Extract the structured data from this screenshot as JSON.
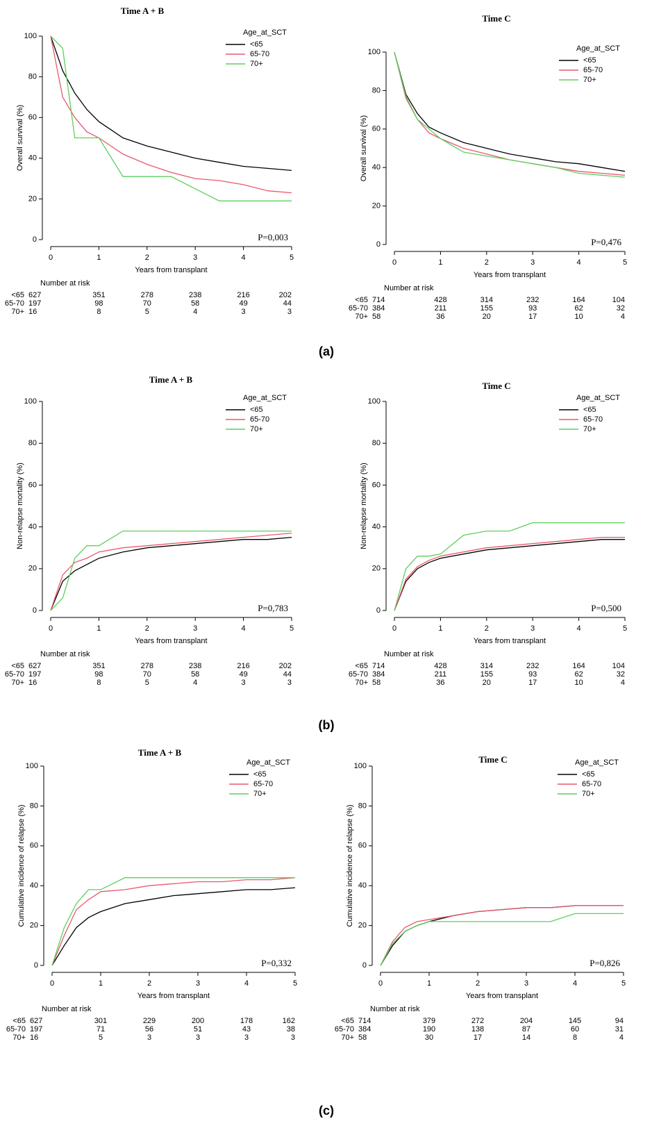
{
  "panel_labels": [
    "(a)",
    "(b)",
    "(c)"
  ],
  "chart_data": [
    {
      "type": "line",
      "title": "Time A + B",
      "ylabel": "Overall survival (%)",
      "xlabel": "Years from transplant",
      "legend_title": "Age_at_SCT",
      "annotation": "P=0,003",
      "xlim": [
        0,
        5
      ],
      "xticks": [
        0,
        1,
        2,
        3,
        4,
        5
      ],
      "ylim": [
        0,
        100
      ],
      "yticks": [
        0,
        20,
        40,
        60,
        80,
        100
      ],
      "x": [
        0,
        0.25,
        0.5,
        0.75,
        1,
        1.5,
        2,
        2.5,
        3,
        3.5,
        4,
        4.5,
        5
      ],
      "series": [
        {
          "name": "<65",
          "color": "#000000",
          "values": [
            100,
            83,
            72,
            64,
            58,
            50,
            46,
            43,
            40,
            38,
            36,
            35,
            34
          ]
        },
        {
          "name": "65-70",
          "color": "#e8586e",
          "values": [
            100,
            70,
            60,
            53,
            50,
            42,
            37,
            33,
            30,
            29,
            27,
            24,
            23
          ]
        },
        {
          "name": "70+",
          "color": "#5ccf5c",
          "values": [
            100,
            94,
            50,
            50,
            50,
            31,
            31,
            31,
            25,
            19,
            19,
            19,
            19
          ]
        }
      ],
      "risk_table": {
        "title": "Number at risk",
        "rows": [
          {
            "name": "<65",
            "values": [
              627,
              351,
              278,
              238,
              216,
              202
            ]
          },
          {
            "name": "65-70",
            "values": [
              197,
              98,
              70,
              58,
              49,
              44
            ]
          },
          {
            "name": "70+",
            "values": [
              16,
              8,
              5,
              4,
              3,
              3
            ]
          }
        ]
      }
    },
    {
      "type": "line",
      "title": "Time C",
      "ylabel": "Overall survival (%)",
      "xlabel": "Years from transplant",
      "legend_title": "Age_at_SCT",
      "annotation": "P=0,476",
      "xlim": [
        0,
        5
      ],
      "xticks": [
        0,
        1,
        2,
        3,
        4,
        5
      ],
      "ylim": [
        0,
        100
      ],
      "yticks": [
        0,
        20,
        40,
        60,
        80,
        100
      ],
      "x": [
        0,
        0.25,
        0.5,
        0.75,
        1,
        1.5,
        2,
        2.5,
        3,
        3.5,
        4,
        4.5,
        5
      ],
      "series": [
        {
          "name": "<65",
          "color": "#000000",
          "values": [
            100,
            78,
            68,
            61,
            58,
            53,
            50,
            47,
            45,
            43,
            42,
            40,
            38
          ]
        },
        {
          "name": "65-70",
          "color": "#e8586e",
          "values": [
            100,
            76,
            65,
            58,
            55,
            50,
            47,
            44,
            42,
            40,
            38,
            37,
            36
          ]
        },
        {
          "name": "70+",
          "color": "#5ccf5c",
          "values": [
            100,
            77,
            65,
            60,
            55,
            48,
            46,
            44,
            42,
            40,
            37,
            36,
            35
          ]
        }
      ],
      "risk_table": {
        "title": "Number at risk",
        "rows": [
          {
            "name": "<65",
            "values": [
              714,
              428,
              314,
              232,
              164,
              104
            ]
          },
          {
            "name": "65-70",
            "values": [
              384,
              211,
              155,
              93,
              62,
              32
            ]
          },
          {
            "name": "70+",
            "values": [
              58,
              36,
              20,
              17,
              10,
              4
            ]
          }
        ]
      }
    },
    {
      "type": "line",
      "title": "Time A + B",
      "ylabel": "Non-relapse mortality (%)",
      "xlabel": "Years from transplant",
      "legend_title": "Age_at_SCT",
      "annotation": "P=0,783",
      "xlim": [
        0,
        5
      ],
      "xticks": [
        0,
        1,
        2,
        3,
        4,
        5
      ],
      "ylim": [
        0,
        100
      ],
      "yticks": [
        0,
        20,
        40,
        60,
        80,
        100
      ],
      "x": [
        0,
        0.25,
        0.5,
        0.75,
        1,
        1.5,
        2,
        2.5,
        3,
        3.5,
        4,
        4.5,
        5
      ],
      "series": [
        {
          "name": "<65",
          "color": "#000000",
          "values": [
            0,
            14,
            19,
            22,
            25,
            28,
            30,
            31,
            32,
            33,
            34,
            34,
            35
          ]
        },
        {
          "name": "65-70",
          "color": "#e8586e",
          "values": [
            0,
            17,
            23,
            25,
            28,
            30,
            31,
            32,
            33,
            34,
            35,
            36,
            37
          ]
        },
        {
          "name": "70+",
          "color": "#5ccf5c",
          "values": [
            0,
            6,
            25,
            31,
            31,
            38,
            38,
            38,
            38,
            38,
            38,
            38,
            38
          ]
        }
      ],
      "risk_table": {
        "title": "Number at risk",
        "rows": [
          {
            "name": "<65",
            "values": [
              627,
              351,
              278,
              238,
              216,
              202
            ]
          },
          {
            "name": "65-70",
            "values": [
              197,
              98,
              70,
              58,
              49,
              44
            ]
          },
          {
            "name": "70+",
            "values": [
              16,
              8,
              5,
              4,
              3,
              3
            ]
          }
        ]
      }
    },
    {
      "type": "line",
      "title": "Time C",
      "ylabel": "Non-relapse mortality (%)",
      "xlabel": "Years from transplant",
      "legend_title": "Age_at_SCT",
      "annotation": "P=0,500",
      "xlim": [
        0,
        5
      ],
      "xticks": [
        0,
        1,
        2,
        3,
        4,
        5
      ],
      "ylim": [
        0,
        100
      ],
      "yticks": [
        0,
        20,
        40,
        60,
        80,
        100
      ],
      "x": [
        0,
        0.25,
        0.5,
        0.75,
        1,
        1.5,
        2,
        2.5,
        3,
        3.5,
        4,
        4.5,
        5
      ],
      "series": [
        {
          "name": "<65",
          "color": "#000000",
          "values": [
            0,
            14,
            20,
            23,
            25,
            27,
            29,
            30,
            31,
            32,
            33,
            34,
            34
          ]
        },
        {
          "name": "65-70",
          "color": "#e8586e",
          "values": [
            0,
            15,
            21,
            24,
            26,
            28,
            30,
            31,
            32,
            33,
            34,
            35,
            35
          ]
        },
        {
          "name": "70+",
          "color": "#5ccf5c",
          "values": [
            0,
            20,
            26,
            26,
            27,
            36,
            38,
            38,
            42,
            42,
            42,
            42,
            42
          ]
        }
      ],
      "risk_table": {
        "title": "Number at risk",
        "rows": [
          {
            "name": "<65",
            "values": [
              714,
              428,
              314,
              232,
              164,
              104
            ]
          },
          {
            "name": "65-70",
            "values": [
              384,
              211,
              155,
              93,
              62,
              32
            ]
          },
          {
            "name": "70+",
            "values": [
              58,
              36,
              20,
              17,
              10,
              4
            ]
          }
        ]
      }
    },
    {
      "type": "line",
      "title": "Time A + B",
      "ylabel": "Cumulative incidence of relapse (%)",
      "xlabel": "Years from transplant",
      "legend_title": "Age_at_SCT",
      "annotation": "P=0,332",
      "xlim": [
        0,
        5
      ],
      "xticks": [
        0,
        1,
        2,
        3,
        4,
        5
      ],
      "ylim": [
        0,
        100
      ],
      "yticks": [
        0,
        20,
        40,
        60,
        80,
        100
      ],
      "x": [
        0,
        0.25,
        0.5,
        0.75,
        1,
        1.5,
        2,
        2.5,
        3,
        3.5,
        4,
        4.5,
        5
      ],
      "series": [
        {
          "name": "<65",
          "color": "#000000",
          "values": [
            0,
            10,
            19,
            24,
            27,
            31,
            33,
            35,
            36,
            37,
            38,
            38,
            39
          ]
        },
        {
          "name": "65-70",
          "color": "#e8586e",
          "values": [
            0,
            15,
            28,
            33,
            37,
            38,
            40,
            41,
            42,
            42,
            43,
            43,
            44
          ]
        },
        {
          "name": "70+",
          "color": "#5ccf5c",
          "values": [
            0,
            19,
            31,
            38,
            38,
            44,
            44,
            44,
            44,
            44,
            44,
            44,
            44
          ]
        }
      ],
      "risk_table": {
        "title": "Number at risk",
        "rows": [
          {
            "name": "<65",
            "values": [
              627,
              301,
              229,
              200,
              178,
              162
            ]
          },
          {
            "name": "65-70",
            "values": [
              197,
              71,
              56,
              51,
              43,
              38
            ]
          },
          {
            "name": "70+",
            "values": [
              16,
              5,
              3,
              3,
              3,
              3
            ]
          }
        ]
      }
    },
    {
      "type": "line",
      "title": "Time C",
      "ylabel": "Cumulative incidence of relapse (%)",
      "xlabel": "Years from transplant",
      "legend_title": "Age_at_SCT",
      "annotation": "P=0,826",
      "xlim": [
        0,
        5
      ],
      "xticks": [
        0,
        1,
        2,
        3,
        4,
        5
      ],
      "ylim": [
        0,
        100
      ],
      "yticks": [
        0,
        20,
        40,
        60,
        80,
        100
      ],
      "x": [
        0,
        0.25,
        0.5,
        0.75,
        1,
        1.5,
        2,
        2.5,
        3,
        3.5,
        4,
        4.5,
        5
      ],
      "series": [
        {
          "name": "<65",
          "color": "#000000",
          "values": [
            0,
            10,
            17,
            20,
            22,
            25,
            27,
            28,
            29,
            29,
            30,
            30,
            30
          ]
        },
        {
          "name": "65-70",
          "color": "#e8586e",
          "values": [
            0,
            12,
            19,
            22,
            23,
            25,
            27,
            28,
            29,
            29,
            30,
            30,
            30
          ]
        },
        {
          "name": "70+",
          "color": "#5ccf5c",
          "values": [
            0,
            11,
            17,
            20,
            22,
            22,
            22,
            22,
            22,
            22,
            26,
            26,
            26
          ]
        }
      ],
      "risk_table": {
        "title": "Number at risk",
        "rows": [
          {
            "name": "<65",
            "values": [
              714,
              379,
              272,
              204,
              145,
              94
            ]
          },
          {
            "name": "65-70",
            "values": [
              384,
              190,
              138,
              87,
              60,
              31
            ]
          },
          {
            "name": "70+",
            "values": [
              58,
              30,
              17,
              14,
              8,
              4
            ]
          }
        ]
      }
    }
  ]
}
